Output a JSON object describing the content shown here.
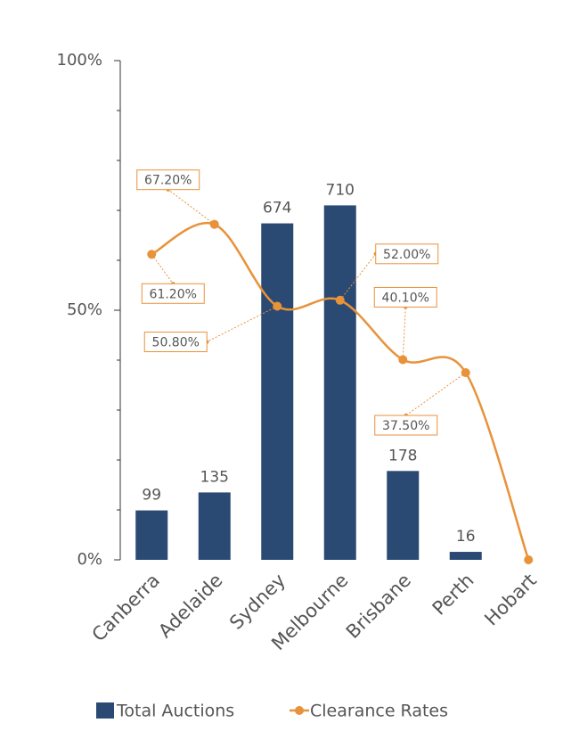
{
  "chart_data": {
    "type": "bar_line",
    "categories": [
      "Canberra",
      "Adelaide",
      "Sydney",
      "Melbourne",
      "Brisbane",
      "Perth",
      "Hobart"
    ],
    "series": [
      {
        "name": "Total Auctions",
        "type": "bar",
        "axis": "y2",
        "color": "#2b4a73",
        "values": [
          99,
          135,
          674,
          710,
          178,
          16,
          null
        ]
      },
      {
        "name": "Clearance Rates",
        "type": "line",
        "color": "#e8923a",
        "values": [
          61.2,
          67.2,
          50.8,
          52.0,
          40.1,
          37.5,
          0
        ],
        "value_labels": [
          "61.20%",
          "67.20%",
          "50.80%",
          "52.00%",
          "40.10%",
          "37.50%",
          null
        ]
      }
    ],
    "ylim": [
      0,
      100
    ],
    "yticks": [
      {
        "value": 0,
        "label": "0%"
      },
      {
        "value": 50,
        "label": "50%"
      },
      {
        "value": 100,
        "label": "100%"
      }
    ],
    "y_minor_ticks": [
      10,
      20,
      30,
      40,
      60,
      70,
      80,
      90
    ],
    "y2lim": [
      0,
      1000
    ],
    "legend": "bottom"
  }
}
